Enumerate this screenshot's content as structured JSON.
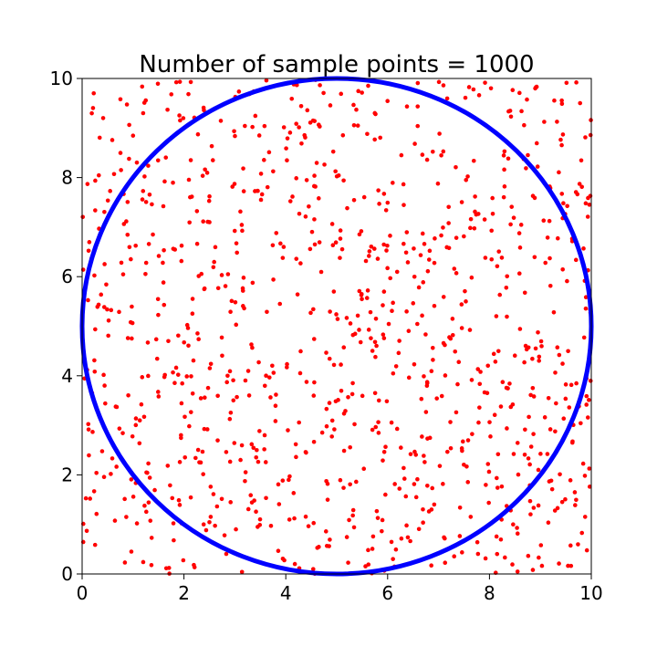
{
  "chart_data": {
    "type": "scatter",
    "title": "Number of sample points = 1000",
    "xlabel": "",
    "ylabel": "",
    "xlim": [
      0,
      10
    ],
    "ylim": [
      0,
      10
    ],
    "xticks": [
      "0",
      "2",
      "4",
      "6",
      "8",
      "10"
    ],
    "yticks": [
      "0",
      "2",
      "4",
      "6",
      "8",
      "10"
    ],
    "grid": false,
    "point_count": 1000,
    "point_color": "#ff0000",
    "circle": {
      "center": [
        5,
        5
      ],
      "radius": 5,
      "color": "#0000ff"
    },
    "series": [
      {
        "values_note_free": true,
        "points": []
      }
    ]
  }
}
